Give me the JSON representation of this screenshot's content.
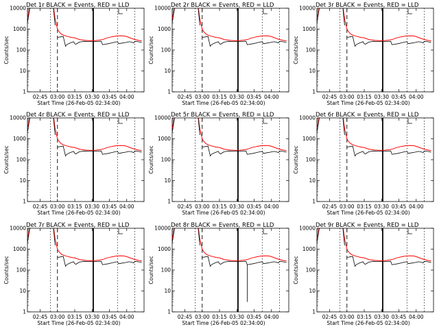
{
  "chart_data": [
    {
      "type": "line",
      "title": "Det 1r BLACK = Events, RED = LLD",
      "xlabel": "Start Time (26-Feb-05 02:34:00)",
      "ylabel": "Counts/sec",
      "yscale": "log",
      "ylim": [
        1,
        10000
      ],
      "xticks": [
        "02:45",
        "03:00",
        "03:15",
        "03:30",
        "03:45",
        "04:00"
      ],
      "yticks": [
        "1",
        "10",
        "100",
        "1000",
        "10000"
      ],
      "series": [
        {
          "name": "BLACK = Events",
          "color": "#000000"
        },
        {
          "name": "RED = LLD",
          "color": "#ff0000"
        }
      ],
      "dip": null
    },
    {
      "type": "line",
      "title": "Det 2r BLACK = Events, RED = LLD",
      "xlabel": "Start Time (26-Feb-05 02:34:00)",
      "ylabel": "Counts/sec",
      "yscale": "log",
      "ylim": [
        1,
        10000
      ],
      "xticks": [
        "02:45",
        "03:00",
        "03:15",
        "03:30",
        "03:45",
        "04:00"
      ],
      "yticks": [
        "1",
        "10",
        "100",
        "1000",
        "10000"
      ],
      "series": [
        {
          "name": "BLACK = Events",
          "color": "#000000"
        },
        {
          "name": "RED = LLD",
          "color": "#ff0000"
        }
      ],
      "dip": null
    },
    {
      "type": "line",
      "title": "Det 3r BLACK = Events, RED = LLD",
      "xlabel": "Start Time (26-Feb-05 02:34:00)",
      "ylabel": "Counts/sec",
      "yscale": "log",
      "ylim": [
        1,
        10000
      ],
      "xticks": [
        "02:45",
        "03:00",
        "03:15",
        "03:30",
        "03:45",
        "04:00"
      ],
      "yticks": [
        "1",
        "10",
        "100",
        "1000",
        "10000"
      ],
      "series": [
        {
          "name": "BLACK = Events",
          "color": "#000000"
        },
        {
          "name": "RED = LLD",
          "color": "#ff0000"
        }
      ],
      "dip": null
    },
    {
      "type": "line",
      "title": "Det 4r BLACK = Events, RED = LLD",
      "xlabel": "Start Time (26-Feb-05 02:34:00)",
      "ylabel": "Counts/sec",
      "yscale": "log",
      "ylim": [
        1,
        10000
      ],
      "xticks": [
        "02:45",
        "03:00",
        "03:15",
        "03:30",
        "03:45",
        "04:00"
      ],
      "yticks": [
        "1",
        "10",
        "100",
        "1000",
        "10000"
      ],
      "series": [
        {
          "name": "BLACK = Events",
          "color": "#000000"
        },
        {
          "name": "RED = LLD",
          "color": "#ff0000"
        }
      ],
      "dip": null
    },
    {
      "type": "line",
      "title": "Det 5r BLACK = Events, RED = LLD",
      "xlabel": "Start Time (26-Feb-05 02:34:00)",
      "ylabel": "Counts/sec",
      "yscale": "log",
      "ylim": [
        1,
        10000
      ],
      "xticks": [
        "02:45",
        "03:00",
        "03:15",
        "03:30",
        "03:45",
        "04:00"
      ],
      "yticks": [
        "1",
        "10",
        "100",
        "1000",
        "10000"
      ],
      "series": [
        {
          "name": "BLACK = Events",
          "color": "#000000"
        },
        {
          "name": "RED = LLD",
          "color": "#ff0000"
        }
      ],
      "dip": null
    },
    {
      "type": "line",
      "title": "Det 6r BLACK = Events, RED = LLD",
      "xlabel": "Start Time (26-Feb-05 02:34:00)",
      "ylabel": "Counts/sec",
      "yscale": "log",
      "ylim": [
        1,
        10000
      ],
      "xticks": [
        "02:45",
        "03:00",
        "03:15",
        "03:30",
        "03:45",
        "04:00"
      ],
      "yticks": [
        "1",
        "10",
        "100",
        "1000",
        "10000"
      ],
      "series": [
        {
          "name": "BLACK = Events",
          "color": "#000000"
        },
        {
          "name": "RED = LLD",
          "color": "#ff0000"
        }
      ],
      "dip": null
    },
    {
      "type": "line",
      "title": "Det 7r BLACK = Events, RED = LLD",
      "xlabel": "Start Time (26-Feb-05 02:34:00)",
      "ylabel": "Counts/sec",
      "yscale": "log",
      "ylim": [
        1,
        10000
      ],
      "xticks": [
        "02:45",
        "03:00",
        "03:15",
        "03:30",
        "03:45",
        "04:00"
      ],
      "yticks": [
        "1",
        "10",
        "100",
        "1000",
        "10000"
      ],
      "series": [
        {
          "name": "BLACK = Events",
          "color": "#000000"
        },
        {
          "name": "RED = LLD",
          "color": "#ff0000"
        }
      ],
      "dip": null
    },
    {
      "type": "line",
      "title": "Det 8r BLACK = Events, RED = LLD",
      "xlabel": "Start Time (26-Feb-05 02:34:00)",
      "ylabel": "Counts/sec",
      "yscale": "log",
      "ylim": [
        1,
        10000
      ],
      "xticks": [
        "02:45",
        "03:00",
        "03:15",
        "03:30",
        "03:45",
        "04:00"
      ],
      "yticks": [
        "1",
        "10",
        "100",
        "1000",
        "10000"
      ],
      "series": [
        {
          "name": "BLACK = Events",
          "color": "#000000"
        },
        {
          "name": "RED = LLD",
          "color": "#ff0000"
        }
      ],
      "dip": {
        "time": "03:39",
        "value": 3
      }
    },
    {
      "type": "line",
      "title": "Det 9r BLACK = Events, RED = LLD",
      "xlabel": "Start Time (26-Feb-05 02:34:00)",
      "ylabel": "Counts/sec",
      "yscale": "log",
      "ylim": [
        1,
        10000
      ],
      "xticks": [
        "02:45",
        "03:00",
        "03:15",
        "03:30",
        "03:45",
        "04:00"
      ],
      "yticks": [
        "1",
        "10",
        "100",
        "1000",
        "10000"
      ],
      "series": [
        {
          "name": "BLACK = Events",
          "color": "#000000"
        },
        {
          "name": "RED = LLD",
          "color": "#ff0000"
        }
      ],
      "dip": null
    }
  ]
}
